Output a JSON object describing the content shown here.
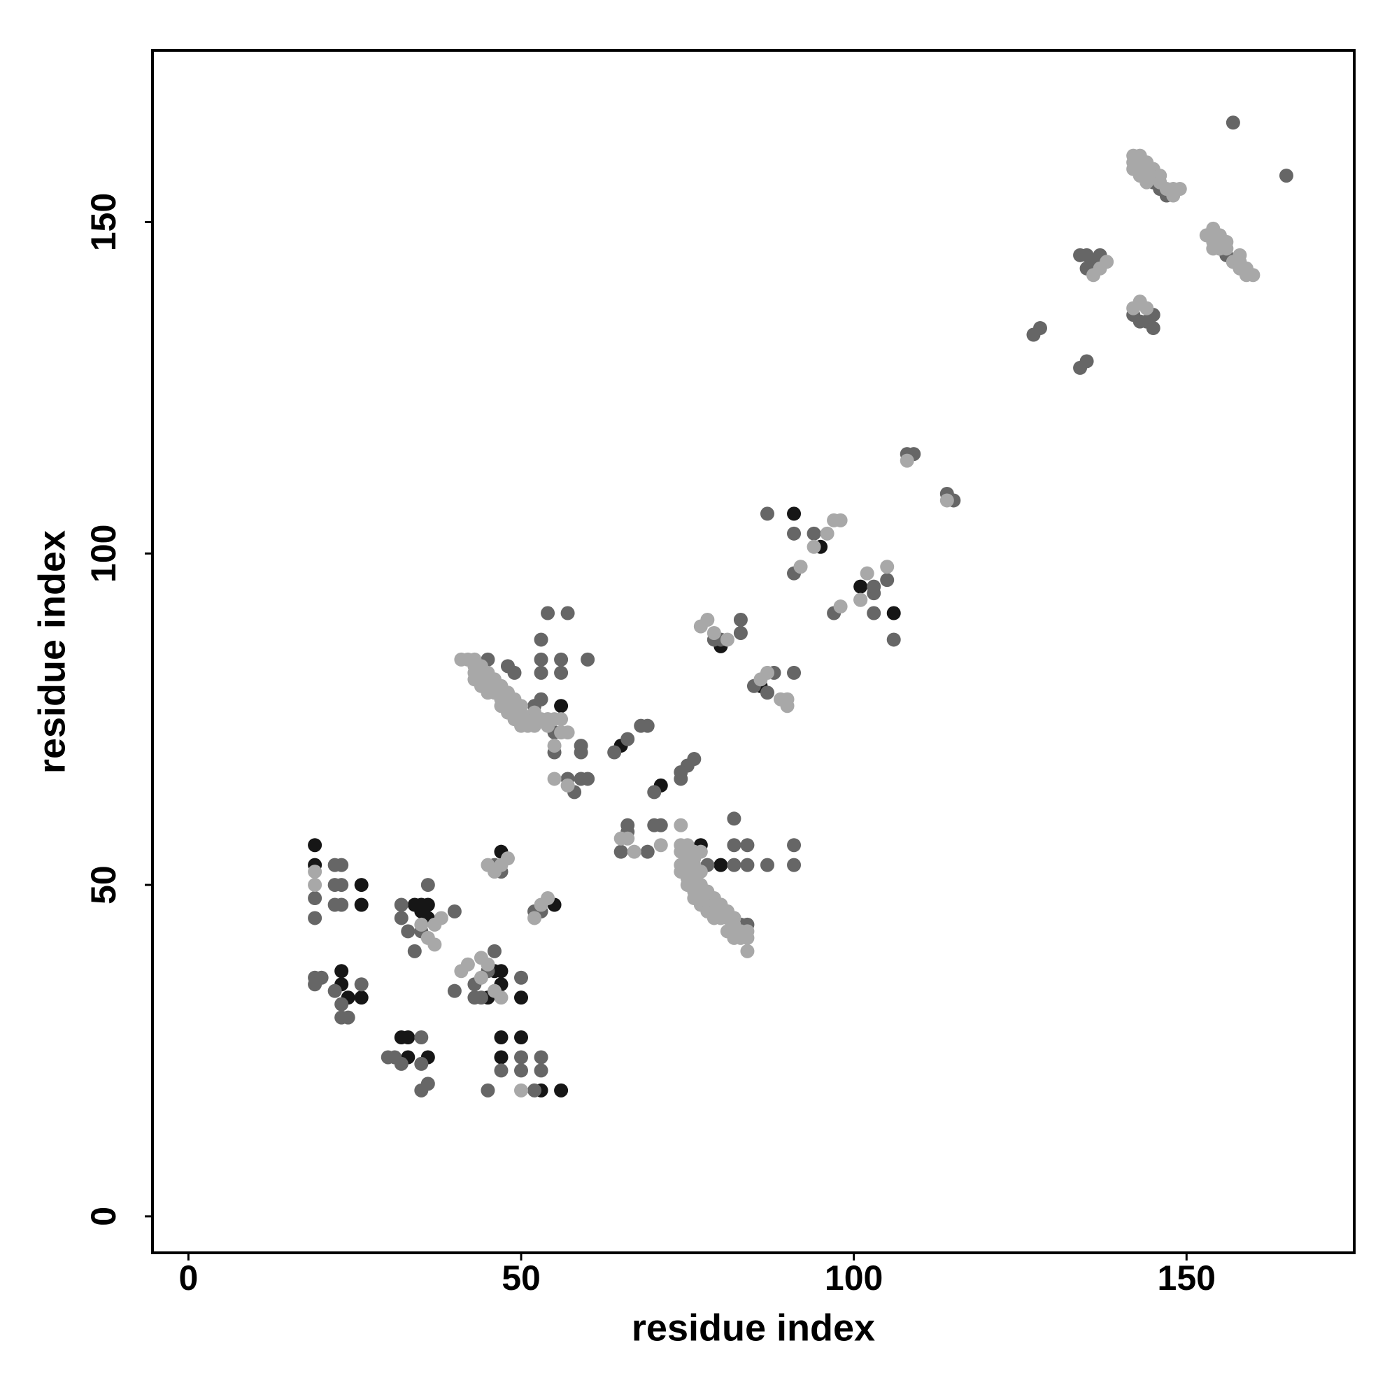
{
  "chart_data": {
    "type": "scatter",
    "xlabel": "residue index",
    "ylabel": "residue index",
    "xlim": [
      -5.4,
      175.2
    ],
    "ylim": [
      -5.5,
      175.9
    ],
    "xticks": [
      0,
      50,
      100,
      150
    ],
    "yticks": [
      0,
      50,
      100,
      150
    ],
    "series": [
      {
        "color": "#161616",
        "x": [
          19,
          19,
          23,
          23,
          26,
          26,
          35,
          35,
          36,
          33,
          33,
          32,
          36,
          46,
          47,
          47,
          45,
          47,
          50,
          50,
          47,
          53,
          56,
          55,
          47,
          56,
          65,
          71,
          77,
          80,
          91,
          95,
          101,
          106,
          80,
          86,
          24,
          26,
          36,
          34
        ],
        "y": [
          56,
          53,
          37,
          35,
          50,
          47,
          47,
          46,
          47,
          24,
          27,
          27,
          24,
          37,
          37,
          35,
          33,
          27,
          27,
          33,
          24,
          19,
          19,
          47,
          55,
          77,
          71,
          65,
          56,
          53,
          106,
          101,
          95,
          91,
          86,
          80,
          33,
          33,
          45,
          47
        ]
      },
      {
        "color": "#666666",
        "x": [
          157,
          165,
          127,
          128,
          134,
          135,
          134,
          135,
          136,
          137,
          135,
          142,
          143,
          144,
          145,
          145,
          108,
          109,
          114,
          115,
          87,
          91,
          94,
          91,
          97,
          103,
          103,
          106,
          101,
          103,
          105,
          83,
          79,
          83,
          80,
          85,
          87,
          88,
          91,
          54,
          57,
          53,
          53,
          53,
          56,
          56,
          60,
          53,
          52,
          55,
          59,
          59,
          55,
          57,
          59,
          60,
          58,
          48,
          49,
          45,
          64,
          66,
          68,
          69,
          70,
          74,
          75,
          76,
          74,
          66,
          66,
          65,
          70,
          71,
          69,
          82,
          82,
          84,
          82,
          84,
          87,
          91,
          91,
          84,
          78,
          19,
          20,
          19,
          22,
          23,
          24,
          23,
          26,
          22,
          23,
          22,
          22,
          23,
          19,
          19,
          23,
          32,
          32,
          33,
          35,
          34,
          36,
          40,
          31,
          30,
          32,
          35,
          35,
          36,
          35,
          40,
          43,
          43,
          44,
          45,
          46,
          45,
          47,
          50,
          50,
          52,
          53,
          53,
          50,
          53,
          52,
          46,
          47,
          147,
          146,
          145,
          157,
          156,
          155,
          82,
          83,
          81,
          80
        ],
        "y": [
          165,
          157,
          133,
          134,
          128,
          129,
          145,
          145,
          144,
          145,
          143,
          136,
          135,
          135,
          134,
          136,
          115,
          115,
          109,
          108,
          106,
          103,
          103,
          97,
          91,
          91,
          94,
          87,
          93,
          95,
          96,
          90,
          87,
          88,
          87,
          80,
          79,
          82,
          82,
          91,
          91,
          87,
          84,
          82,
          84,
          82,
          84,
          78,
          77,
          73,
          71,
          70,
          70,
          66,
          66,
          66,
          64,
          83,
          82,
          84,
          70,
          72,
          74,
          74,
          64,
          66,
          68,
          69,
          67,
          59,
          58,
          55,
          59,
          59,
          55,
          60,
          56,
          56,
          53,
          53,
          53,
          56,
          53,
          44,
          53,
          36,
          36,
          35,
          34,
          32,
          30,
          30,
          35,
          47,
          53,
          53,
          50,
          50,
          48,
          45,
          47,
          47,
          45,
          43,
          43,
          40,
          50,
          46,
          24,
          24,
          23,
          23,
          27,
          20,
          19,
          34,
          35,
          33,
          33,
          37,
          40,
          19,
          22,
          22,
          24,
          19,
          22,
          24,
          36,
          46,
          46,
          53,
          52,
          154,
          155,
          156,
          144,
          145,
          146,
          45,
          44,
          46,
          47
        ]
      },
      {
        "color": "#a8a8a8",
        "x": [
          19,
          19,
          36,
          37,
          38,
          35,
          37,
          41,
          42,
          44,
          45,
          44,
          47,
          46,
          50,
          53,
          54,
          52,
          46,
          47,
          48,
          45,
          55,
          56,
          55,
          54,
          56,
          57,
          55,
          57,
          65,
          66,
          67,
          71,
          74,
          75,
          74,
          75,
          76,
          84,
          77,
          78,
          79,
          81,
          86,
          87,
          89,
          90,
          90,
          92,
          94,
          96,
          97,
          98,
          98,
          101,
          102,
          105,
          108,
          114,
          136,
          137,
          138,
          142,
          143,
          144,
          142,
          142,
          142,
          143,
          143,
          143,
          143,
          144,
          144,
          144,
          145,
          145,
          146,
          146,
          147,
          148,
          148,
          149,
          153,
          154,
          154,
          154,
          155,
          155,
          155,
          156,
          156,
          157,
          158,
          158,
          158,
          159,
          159,
          160,
          41,
          42,
          43,
          43,
          43,
          43,
          44,
          44,
          44,
          44,
          45,
          45,
          45,
          45,
          46,
          46,
          46,
          47,
          47,
          47,
          47,
          48,
          48,
          48,
          48,
          49,
          49,
          49,
          49,
          50,
          50,
          50,
          50,
          51,
          51,
          52,
          52,
          52,
          53,
          54,
          54,
          74,
          75,
          75,
          75,
          75,
          75,
          76,
          76,
          76,
          76,
          77,
          77,
          77,
          77,
          78,
          78,
          78,
          78,
          79,
          79,
          79,
          79,
          80,
          80,
          81,
          81,
          81,
          82,
          82,
          82,
          83,
          83,
          84,
          84,
          76,
          77,
          74,
          74,
          76,
          77
        ],
        "y": [
          50,
          52,
          42,
          44,
          45,
          44,
          41,
          37,
          38,
          39,
          38,
          36,
          33,
          34,
          19,
          47,
          48,
          45,
          52,
          53,
          54,
          53,
          71,
          73,
          75,
          75,
          75,
          73,
          66,
          65,
          57,
          57,
          55,
          56,
          59,
          56,
          55,
          55,
          54,
          40,
          89,
          90,
          88,
          87,
          81,
          82,
          78,
          77,
          78,
          98,
          101,
          103,
          105,
          105,
          92,
          93,
          97,
          98,
          114,
          108,
          142,
          143,
          144,
          137,
          138,
          137,
          160,
          159,
          158,
          160,
          159,
          158,
          157,
          159,
          157,
          156,
          158,
          157,
          157,
          156,
          155,
          155,
          154,
          155,
          148,
          149,
          147,
          146,
          148,
          147,
          146,
          147,
          146,
          144,
          145,
          144,
          143,
          143,
          142,
          142,
          84,
          84,
          84,
          83,
          82,
          81,
          83,
          82,
          81,
          80,
          82,
          81,
          80,
          79,
          81,
          80,
          79,
          80,
          79,
          78,
          77,
          79,
          78,
          77,
          76,
          78,
          77,
          76,
          75,
          77,
          76,
          75,
          74,
          75,
          74,
          76,
          75,
          74,
          75,
          75,
          74,
          56,
          54,
          53,
          52,
          51,
          50,
          51,
          50,
          49,
          48,
          50,
          49,
          48,
          47,
          49,
          48,
          47,
          46,
          48,
          47,
          46,
          45,
          47,
          45,
          46,
          45,
          43,
          45,
          44,
          42,
          43,
          42,
          43,
          42,
          55,
          55,
          53,
          52,
          53,
          52
        ]
      }
    ]
  }
}
